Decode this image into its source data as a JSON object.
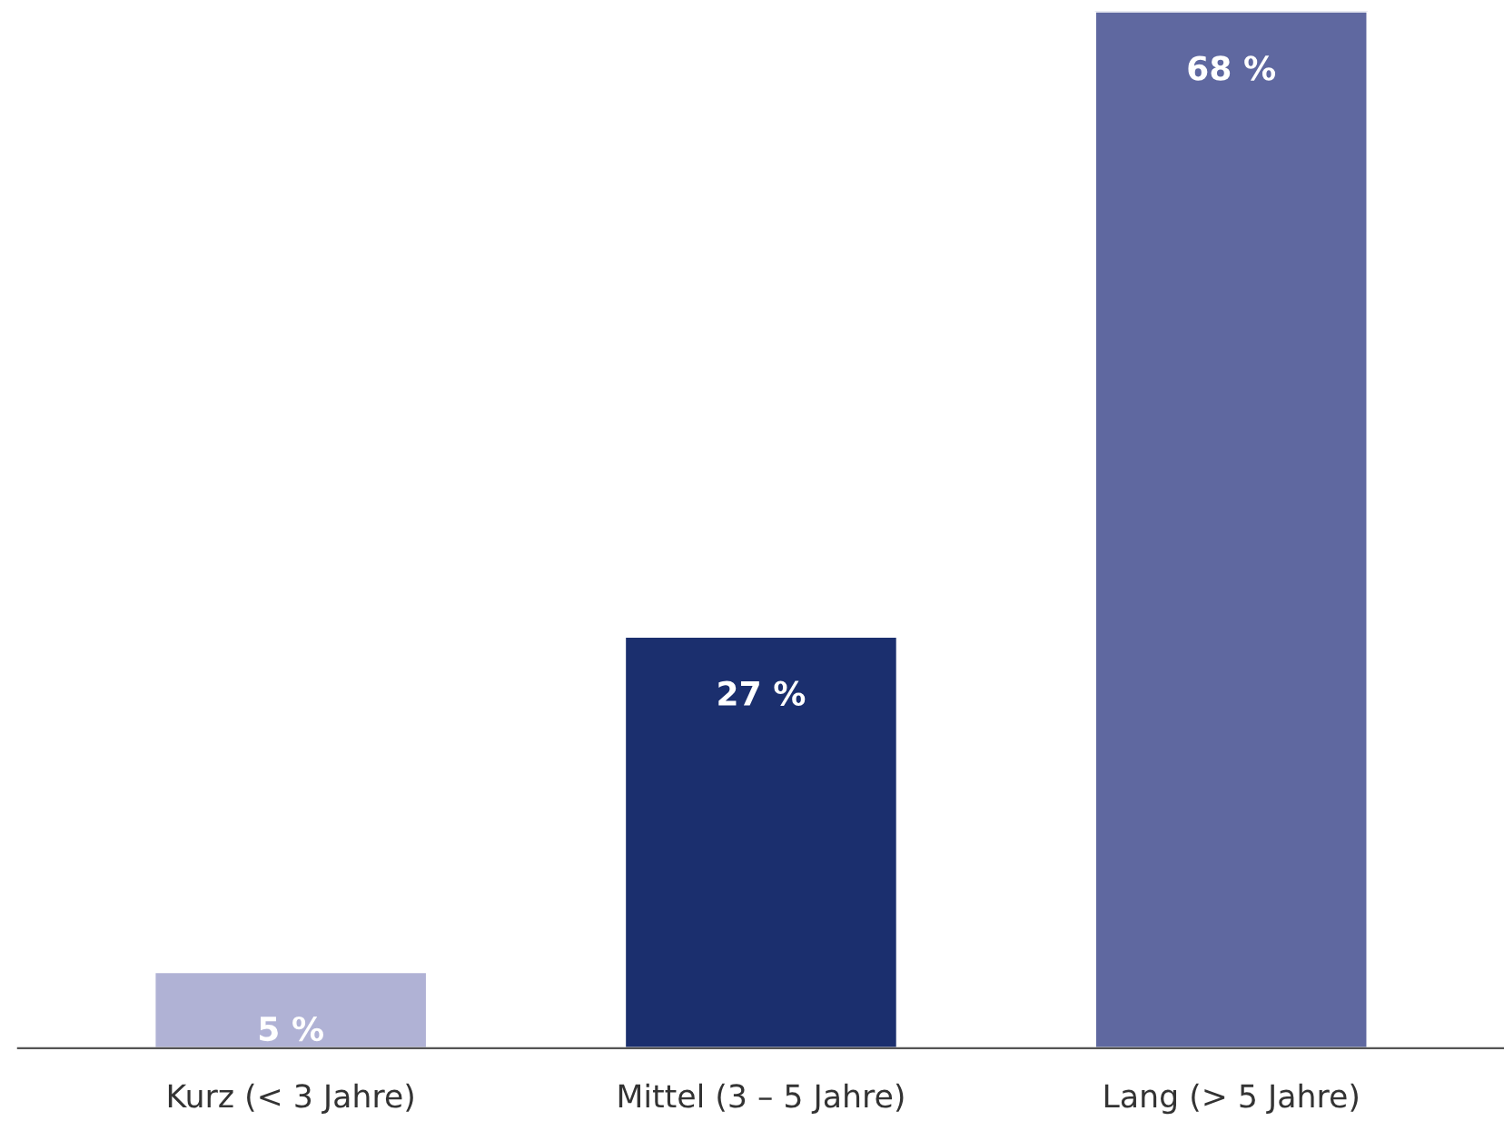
{
  "chart_data": {
    "type": "bar",
    "categories": [
      "Kurz (< 3 Jahre)",
      "Mittel (3 – 5 Jahre)",
      "Lang (> 5 Jahre)"
    ],
    "values": [
      5,
      27,
      68
    ],
    "value_labels": [
      "5 %",
      "27 %",
      "68 %"
    ],
    "colors": [
      "#b0b2d5",
      "#1b2f6e",
      "#5f68a0"
    ],
    "ylim": [
      0,
      68
    ],
    "grid": false,
    "legend": false
  }
}
